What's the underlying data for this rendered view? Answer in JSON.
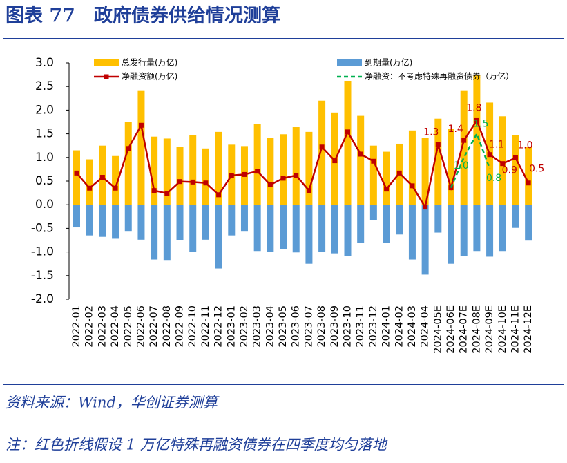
{
  "header": {
    "title": "图表 77　政府债券供给情况测算"
  },
  "chart_data": {
    "type": "bar",
    "categories": [
      "2022-01",
      "2022-02",
      "2022-03",
      "2022-04",
      "2022-05",
      "2022-06",
      "2022-07",
      "2022-08",
      "2022-09",
      "2022-10",
      "2022-11",
      "2022-12",
      "2023-01",
      "2023-02",
      "2023-03",
      "2023-04",
      "2023-05",
      "2023-06",
      "2023-07",
      "2023-08",
      "2023-09",
      "2023-10",
      "2023-11",
      "2023-12",
      "2024-01",
      "2024-02",
      "2024-03",
      "2024-04",
      "2024-05E",
      "2024-06E",
      "2024-07E",
      "2024-08E",
      "2024-09E",
      "2024-10E",
      "2024-11E",
      "2024-12E"
    ],
    "series": [
      {
        "name": "总发行量(万亿)",
        "type": "bar",
        "color": "#ffc000",
        "values": [
          1.15,
          0.96,
          1.25,
          1.03,
          1.75,
          2.42,
          1.44,
          1.4,
          1.22,
          1.47,
          1.19,
          1.54,
          1.27,
          1.24,
          1.7,
          1.41,
          1.49,
          1.64,
          1.54,
          2.2,
          1.95,
          2.62,
          1.88,
          1.25,
          1.12,
          1.29,
          1.57,
          1.41,
          1.82,
          1.6,
          2.42,
          2.75,
          2.16,
          1.87,
          1.47,
          1.22
        ]
      },
      {
        "name": "到期量(万亿)",
        "type": "bar",
        "color": "#5b9bd5",
        "values": [
          -0.48,
          -0.65,
          -0.68,
          -0.72,
          -0.57,
          -0.74,
          -1.16,
          -1.17,
          -0.75,
          -1.0,
          -0.74,
          -1.35,
          -0.65,
          -0.57,
          -0.98,
          -1.0,
          -0.94,
          -1.01,
          -1.25,
          -1.0,
          -1.03,
          -1.09,
          -0.81,
          -0.33,
          -0.81,
          -0.63,
          -1.16,
          -1.48,
          -0.59,
          -1.25,
          -1.09,
          -0.98,
          -1.1,
          -0.98,
          -0.49,
          -0.76
        ]
      },
      {
        "name": "净融资额(万亿)",
        "type": "line",
        "color": "#c00000",
        "marker": "square",
        "values": [
          0.67,
          0.35,
          0.58,
          0.35,
          1.19,
          1.68,
          0.3,
          0.24,
          0.49,
          0.48,
          0.46,
          0.21,
          0.62,
          0.64,
          0.71,
          0.42,
          0.56,
          0.62,
          0.3,
          1.22,
          0.93,
          1.54,
          1.07,
          0.92,
          0.33,
          0.67,
          0.4,
          -0.05,
          1.27,
          0.36,
          1.36,
          1.78,
          1.06,
          0.87,
          0.99,
          0.46
        ],
        "value_labels": [
          null,
          null,
          null,
          null,
          null,
          null,
          null,
          null,
          null,
          null,
          null,
          null,
          null,
          null,
          null,
          null,
          null,
          null,
          null,
          null,
          null,
          null,
          null,
          null,
          null,
          null,
          null,
          null,
          "1.3",
          null,
          "1.4",
          "1.8",
          "1.1",
          "0.9",
          "1.0",
          "0.5"
        ]
      },
      {
        "name": "净融资：不考虑特殊再融资债券（万亿）",
        "type": "line",
        "color": "#00b050",
        "dashed": true,
        "values": [
          null,
          null,
          null,
          null,
          null,
          null,
          null,
          null,
          null,
          null,
          null,
          null,
          null,
          null,
          null,
          null,
          null,
          null,
          null,
          null,
          null,
          null,
          null,
          null,
          null,
          null,
          null,
          null,
          null,
          0.36,
          1.0,
          1.5,
          0.76,
          null,
          null,
          null
        ],
        "value_labels": [
          null,
          null,
          null,
          null,
          null,
          null,
          null,
          null,
          null,
          null,
          null,
          null,
          null,
          null,
          null,
          null,
          null,
          null,
          null,
          null,
          null,
          null,
          null,
          null,
          null,
          null,
          null,
          null,
          null,
          null,
          "1.0",
          "1.5",
          "0.8",
          null,
          null,
          null
        ]
      }
    ],
    "ylim": [
      -2,
      3
    ],
    "yticks": [
      {
        "value": 3,
        "label": "3.0"
      },
      {
        "value": 2.5,
        "label": "2.5"
      },
      {
        "value": 2,
        "label": "2.0"
      },
      {
        "value": 1.5,
        "label": "1.5"
      },
      {
        "value": 1,
        "label": "1.0"
      },
      {
        "value": 0.5,
        "label": "0.5"
      },
      {
        "value": 0,
        "label": "0.0"
      },
      {
        "value": -0.5,
        "label": "-0.5"
      },
      {
        "value": -1,
        "label": "-1.0"
      },
      {
        "value": -1.5,
        "label": "-1.5"
      },
      {
        "value": -2,
        "label": "-2.0"
      }
    ],
    "grid": false
  },
  "footer": {
    "source": "资料来源：Wind，华创证券测算",
    "note": "注：红色折线假设 1 万亿特殊再融资债券在四季度均匀落地"
  }
}
